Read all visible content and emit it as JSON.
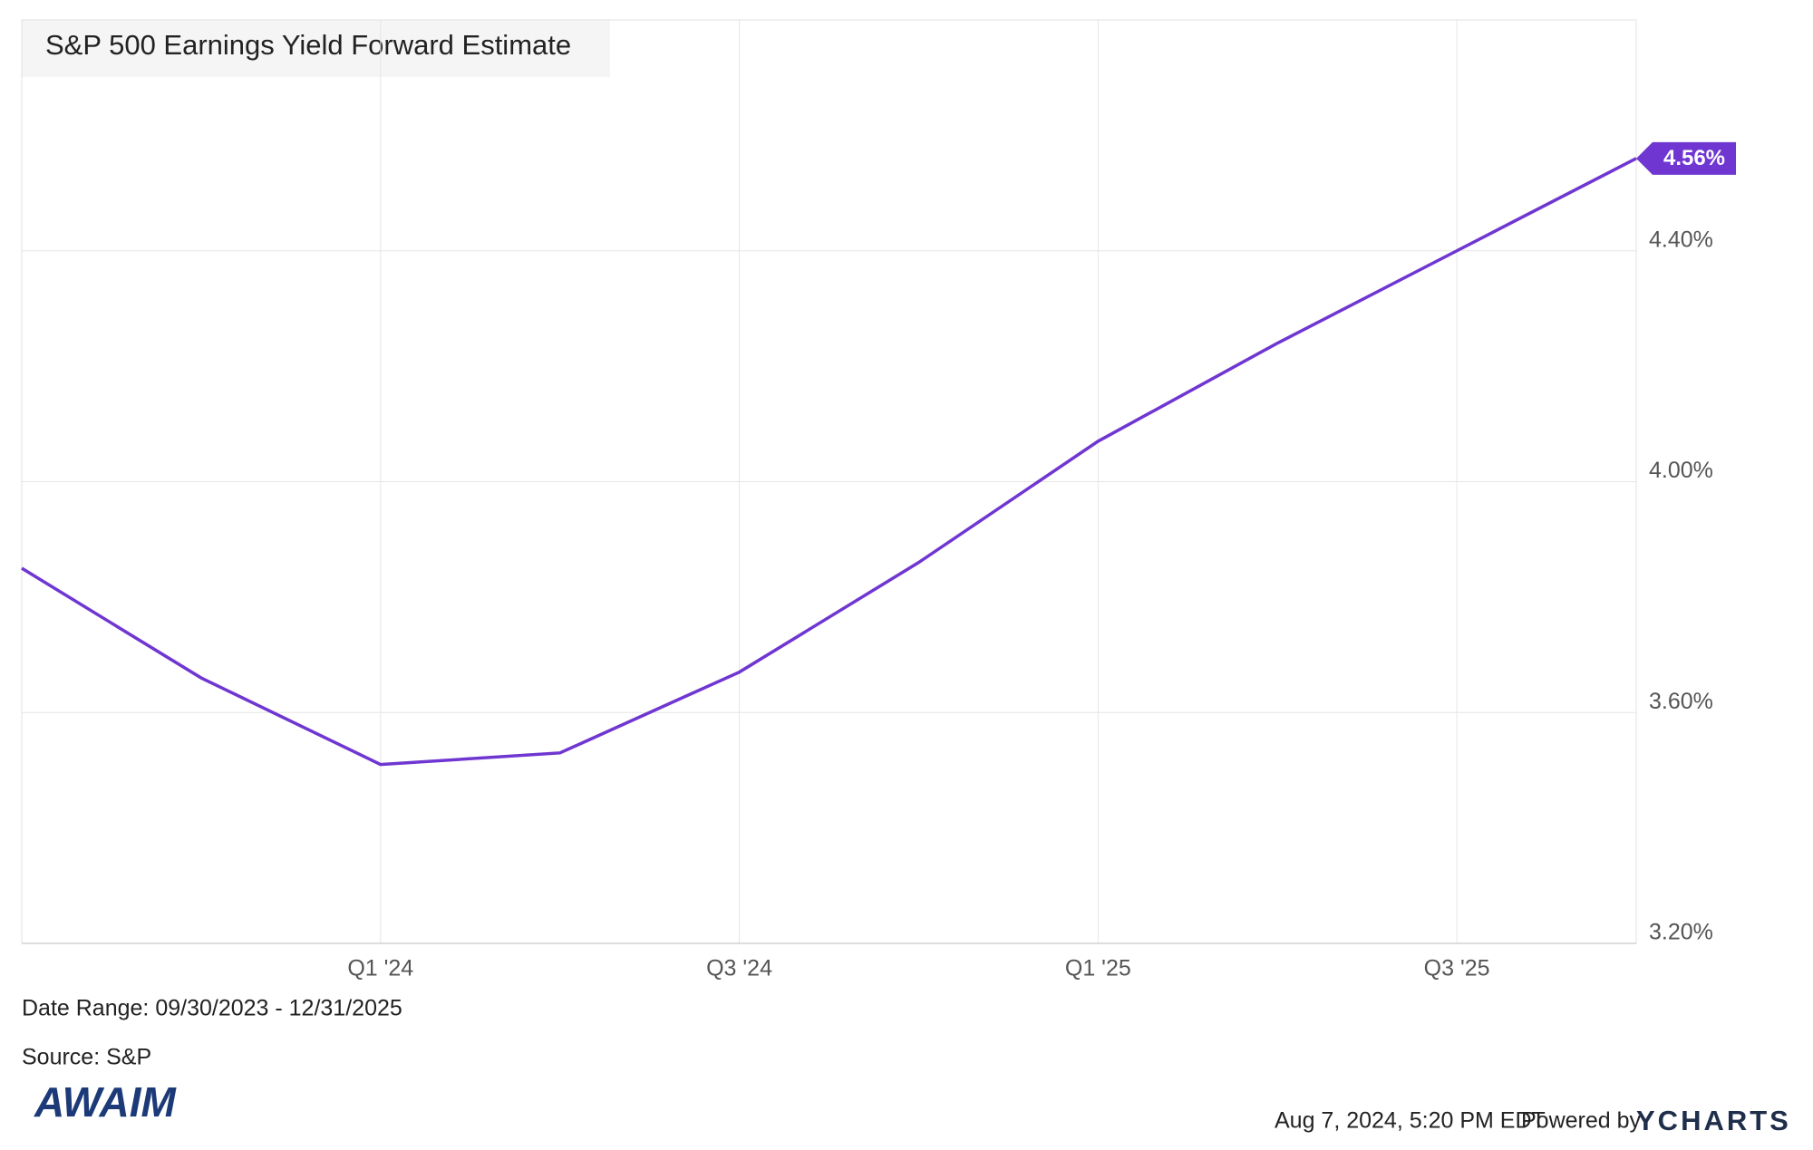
{
  "chart_data": {
    "type": "line",
    "title": "S&P 500 Earnings Yield Forward Estimate",
    "categories": [
      null,
      null,
      "Q1 '24",
      null,
      "Q3 '24",
      null,
      "Q1 '25",
      null,
      "Q3 '25",
      null
    ],
    "series": [
      {
        "name": "S&P 500 Earnings Yield Forward Estimate",
        "color": "#6f36d1",
        "values": [
          3.85,
          3.66,
          3.51,
          3.53,
          3.67,
          3.86,
          4.07,
          4.24,
          4.4,
          4.56
        ],
        "value_labels": [
          null,
          null,
          null,
          null,
          null,
          null,
          null,
          null,
          null,
          "4.56%"
        ]
      }
    ],
    "ylim": [
      3.2,
      4.8
    ],
    "yticks": [
      {
        "value": 3.2,
        "label": "3.20%"
      },
      {
        "value": 3.6,
        "label": "3.60%"
      },
      {
        "value": 4.0,
        "label": "4.00%"
      },
      {
        "value": 4.4,
        "label": "4.40%"
      }
    ],
    "grid": true,
    "date_range": "Date Range: 09/30/2023 - 12/31/2025",
    "source": "Source: S&P",
    "logo": "AWAIM",
    "timestamp": "Aug 7, 2024, 5:20 PM EDT",
    "powered_by": "Powered by",
    "brand": "YCHARTS"
  }
}
